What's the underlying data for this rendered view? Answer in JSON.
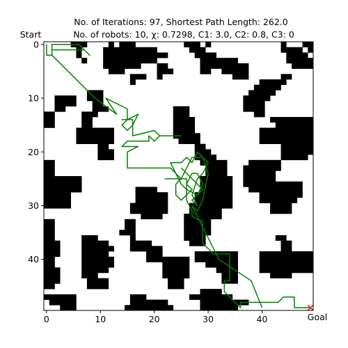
{
  "chart_data": {
    "type": "grid-path",
    "title_line1": "No. of Iterations: 97, Shortest Path Length: 262.0",
    "title_line2": "No. of robots: 10, χ: 0.7298, C1: 3.0, C2: 0.8, C3: 0",
    "start_label": "Start",
    "goal_label": "Goal",
    "grid_size": 50,
    "xlim": [
      -0.5,
      49.5
    ],
    "ylim": [
      49.5,
      -0.5
    ],
    "x_ticks": [
      0,
      10,
      20,
      30,
      40
    ],
    "y_ticks": [
      0,
      10,
      20,
      30,
      40
    ],
    "path_color": "#008000",
    "goal_marker_color": "#d62728",
    "goal": [
      49,
      49
    ],
    "obstacles": [
      [
        5,
        0,
        7,
        1
      ],
      [
        12,
        0,
        12,
        1
      ],
      [
        14,
        0,
        16,
        1
      ],
      [
        26,
        0,
        28,
        1
      ],
      [
        30,
        0,
        30,
        1
      ],
      [
        44,
        0,
        44,
        1
      ],
      [
        48,
        0,
        49,
        1
      ],
      [
        6,
        1,
        6,
        1
      ],
      [
        11,
        1,
        20,
        1
      ],
      [
        27,
        1,
        29,
        1
      ],
      [
        44,
        1,
        47,
        1
      ],
      [
        49,
        1,
        49,
        1
      ],
      [
        6,
        2,
        6,
        2
      ],
      [
        11,
        2,
        22,
        2
      ],
      [
        28,
        2,
        31,
        2
      ],
      [
        45,
        2,
        48,
        2
      ],
      [
        7,
        3,
        7,
        3
      ],
      [
        11,
        3,
        20,
        3
      ],
      [
        29,
        3,
        35,
        3
      ],
      [
        45,
        3,
        49,
        3
      ],
      [
        11,
        4,
        17,
        4
      ],
      [
        21,
        4,
        22,
        4
      ],
      [
        29,
        4,
        37,
        4
      ],
      [
        46,
        4,
        49,
        4
      ],
      [
        12,
        5,
        14,
        5
      ],
      [
        21,
        5,
        23,
        5
      ],
      [
        29,
        5,
        30,
        5
      ],
      [
        33,
        5,
        37,
        5
      ],
      [
        16,
        6,
        18,
        6
      ],
      [
        21,
        6,
        21,
        6
      ],
      [
        35,
        6,
        37,
        6
      ],
      [
        44,
        6,
        45,
        6
      ],
      [
        16,
        7,
        16,
        7
      ],
      [
        40,
        7,
        44,
        7
      ],
      [
        39,
        8,
        43,
        8
      ],
      [
        8,
        9,
        10,
        9
      ],
      [
        38,
        9,
        42,
        9
      ],
      [
        2,
        10,
        5,
        10
      ],
      [
        8,
        10,
        10,
        10
      ],
      [
        37,
        10,
        41,
        10
      ],
      [
        2,
        11,
        5,
        11
      ],
      [
        9,
        11,
        10,
        11
      ],
      [
        37,
        11,
        40,
        11
      ],
      [
        2,
        12,
        3,
        12
      ],
      [
        9,
        12,
        11,
        12
      ],
      [
        24,
        12,
        26,
        12
      ],
      [
        37,
        12,
        40,
        12
      ],
      [
        0,
        13,
        1,
        13
      ],
      [
        7,
        13,
        9,
        13
      ],
      [
        24,
        13,
        26,
        13
      ],
      [
        39,
        13,
        40,
        13
      ],
      [
        0,
        14,
        1,
        14
      ],
      [
        7,
        14,
        8,
        14
      ],
      [
        24,
        14,
        27,
        14
      ],
      [
        42,
        14,
        49,
        14
      ],
      [
        0,
        15,
        1,
        15
      ],
      [
        7,
        15,
        8,
        15
      ],
      [
        24,
        15,
        27,
        15
      ],
      [
        43,
        15,
        49,
        15
      ],
      [
        6,
        16,
        12,
        16
      ],
      [
        24,
        16,
        27,
        16
      ],
      [
        40,
        16,
        49,
        16
      ],
      [
        6,
        17,
        12,
        17
      ],
      [
        24,
        17,
        28,
        17
      ],
      [
        40,
        17,
        49,
        17
      ],
      [
        6,
        18,
        12,
        18
      ],
      [
        25,
        18,
        28,
        18
      ],
      [
        40,
        18,
        49,
        18
      ],
      [
        10,
        19,
        11,
        19
      ],
      [
        28,
        19,
        29,
        19
      ],
      [
        44,
        19,
        49,
        19
      ],
      [
        10,
        20,
        12,
        20
      ],
      [
        28,
        20,
        30,
        20
      ],
      [
        44,
        20,
        49,
        20
      ],
      [
        10,
        21,
        12,
        21
      ],
      [
        28,
        21,
        31,
        21
      ],
      [
        44,
        21,
        48,
        21
      ],
      [
        0,
        22,
        1,
        22
      ],
      [
        29,
        22,
        33,
        22
      ],
      [
        38,
        22,
        43,
        22
      ],
      [
        0,
        23,
        1,
        23
      ],
      [
        30,
        23,
        33,
        23
      ],
      [
        37,
        23,
        43,
        23
      ],
      [
        0,
        24,
        1,
        24
      ],
      [
        30,
        24,
        33,
        24
      ],
      [
        37,
        24,
        42,
        24
      ],
      [
        0,
        25,
        6,
        25
      ],
      [
        29,
        25,
        34,
        25
      ],
      [
        37,
        25,
        42,
        25
      ],
      [
        0,
        26,
        6,
        26
      ],
      [
        29,
        26,
        34,
        26
      ],
      [
        37,
        26,
        47,
        26
      ],
      [
        0,
        27,
        6,
        27
      ],
      [
        17,
        27,
        20,
        27
      ],
      [
        29,
        27,
        34,
        27
      ],
      [
        38,
        27,
        47,
        27
      ],
      [
        0,
        28,
        4,
        28
      ],
      [
        17,
        28,
        22,
        28
      ],
      [
        28,
        28,
        34,
        28
      ],
      [
        40,
        28,
        47,
        28
      ],
      [
        0,
        29,
        4,
        29
      ],
      [
        17,
        29,
        22,
        29
      ],
      [
        28,
        29,
        34,
        29
      ],
      [
        40,
        29,
        46,
        29
      ],
      [
        0,
        30,
        4,
        30
      ],
      [
        16,
        30,
        22,
        30
      ],
      [
        27,
        30,
        34,
        30
      ],
      [
        42,
        30,
        45,
        30
      ],
      [
        16,
        31,
        22,
        31
      ],
      [
        27,
        31,
        32,
        31
      ],
      [
        42,
        31,
        45,
        31
      ],
      [
        18,
        32,
        21,
        32
      ],
      [
        26,
        32,
        32,
        32
      ],
      [
        0,
        33,
        1,
        33
      ],
      [
        15,
        33,
        16,
        33
      ],
      [
        26,
        33,
        30,
        33
      ],
      [
        0,
        34,
        1,
        34
      ],
      [
        15,
        34,
        16,
        34
      ],
      [
        26,
        34,
        30,
        34
      ],
      [
        0,
        35,
        1,
        35
      ],
      [
        14,
        35,
        16,
        35
      ],
      [
        26,
        35,
        30,
        35
      ],
      [
        0,
        36,
        1,
        36
      ],
      [
        7,
        36,
        9,
        36
      ],
      [
        16,
        36,
        16,
        36
      ],
      [
        26,
        36,
        29,
        36
      ],
      [
        43,
        36,
        44,
        36
      ],
      [
        0,
        37,
        2,
        37
      ],
      [
        7,
        37,
        11,
        37
      ],
      [
        16,
        37,
        19,
        37
      ],
      [
        27,
        37,
        29,
        37
      ],
      [
        44,
        37,
        45,
        37
      ],
      [
        0,
        38,
        2,
        38
      ],
      [
        7,
        38,
        12,
        38
      ],
      [
        16,
        38,
        21,
        38
      ],
      [
        44,
        38,
        45,
        38
      ],
      [
        0,
        39,
        2,
        39
      ],
      [
        7,
        39,
        11,
        39
      ],
      [
        19,
        39,
        21,
        39
      ],
      [
        28,
        39,
        35,
        39
      ],
      [
        40,
        39,
        49,
        39
      ],
      [
        0,
        40,
        1,
        40
      ],
      [
        7,
        40,
        12,
        40
      ],
      [
        19,
        40,
        26,
        40
      ],
      [
        28,
        40,
        35,
        40
      ],
      [
        40,
        40,
        49,
        40
      ],
      [
        0,
        41,
        1,
        41
      ],
      [
        7,
        41,
        12,
        41
      ],
      [
        22,
        41,
        26,
        41
      ],
      [
        30,
        41,
        35,
        41
      ],
      [
        40,
        41,
        49,
        41
      ],
      [
        0,
        42,
        2,
        42
      ],
      [
        7,
        42,
        11,
        42
      ],
      [
        22,
        42,
        26,
        42
      ],
      [
        32,
        42,
        35,
        42
      ],
      [
        40,
        42,
        49,
        42
      ],
      [
        0,
        43,
        2,
        43
      ],
      [
        7,
        43,
        9,
        43
      ],
      [
        22,
        43,
        26,
        43
      ],
      [
        33,
        43,
        35,
        43
      ],
      [
        42,
        43,
        45,
        43
      ],
      [
        0,
        44,
        2,
        44
      ],
      [
        8,
        44,
        11,
        44
      ],
      [
        23,
        44,
        25,
        44
      ],
      [
        33,
        44,
        35,
        44
      ],
      [
        0,
        45,
        1,
        45
      ],
      [
        8,
        45,
        11,
        45
      ],
      [
        23,
        45,
        25,
        45
      ],
      [
        29,
        46,
        32,
        46
      ],
      [
        0,
        47,
        5,
        47
      ],
      [
        16,
        47,
        18,
        47
      ],
      [
        27,
        47,
        34,
        47
      ],
      [
        1,
        48,
        5,
        48
      ],
      [
        16,
        48,
        22,
        48
      ],
      [
        29,
        48,
        37,
        48
      ],
      [
        3,
        49,
        5,
        49
      ],
      [
        15,
        49,
        23,
        49
      ],
      [
        29,
        49,
        35,
        49
      ]
    ],
    "path": [
      [
        0,
        0
      ],
      [
        0,
        2
      ],
      [
        1,
        2
      ],
      [
        1,
        0
      ],
      [
        6,
        0
      ],
      [
        8,
        2
      ],
      [
        7,
        1
      ],
      [
        1,
        1
      ],
      [
        1,
        2
      ],
      [
        5,
        6
      ],
      [
        9,
        10
      ],
      [
        13,
        13
      ],
      [
        11,
        10
      ],
      [
        15,
        12
      ],
      [
        15,
        14
      ],
      [
        14,
        15
      ],
      [
        15,
        16
      ],
      [
        16,
        15
      ],
      [
        17,
        13
      ],
      [
        15,
        14
      ],
      [
        14,
        14
      ],
      [
        16,
        14
      ],
      [
        16,
        15
      ],
      [
        16,
        17
      ],
      [
        20,
        16
      ],
      [
        21,
        17
      ],
      [
        25,
        17
      ],
      [
        21,
        17
      ],
      [
        20,
        18
      ],
      [
        19,
        17
      ],
      [
        19,
        18
      ],
      [
        15,
        18
      ],
      [
        14,
        19
      ],
      [
        17,
        19
      ],
      [
        15,
        20
      ],
      [
        15,
        23
      ],
      [
        23,
        23
      ],
      [
        25,
        25
      ],
      [
        22,
        25
      ],
      [
        26,
        25
      ],
      [
        26,
        29
      ],
      [
        27,
        31
      ],
      [
        27,
        32
      ],
      [
        29,
        33
      ],
      [
        29,
        37
      ],
      [
        31,
        39
      ],
      [
        34,
        39
      ],
      [
        34,
        44
      ],
      [
        33,
        44
      ],
      [
        33,
        46
      ],
      [
        36,
        49
      ],
      [
        36,
        48
      ],
      [
        43,
        48
      ],
      [
        44,
        47
      ],
      [
        46,
        47
      ],
      [
        46,
        49
      ],
      [
        49,
        49
      ]
    ],
    "path_cluster": [
      [
        25,
        23
      ],
      [
        26,
        24
      ],
      [
        27,
        25
      ],
      [
        28,
        26
      ],
      [
        29,
        27
      ],
      [
        28,
        28
      ],
      [
        27,
        29
      ],
      [
        28,
        30
      ],
      [
        27,
        28
      ],
      [
        28,
        25
      ],
      [
        29,
        24
      ],
      [
        30,
        22
      ],
      [
        29,
        21
      ],
      [
        28,
        20
      ],
      [
        27,
        22
      ],
      [
        26,
        21
      ],
      [
        25,
        22
      ],
      [
        24,
        22
      ],
      [
        23,
        22
      ],
      [
        25,
        26
      ],
      [
        26,
        27
      ],
      [
        28,
        28
      ],
      [
        29,
        26
      ],
      [
        28,
        24
      ],
      [
        27,
        24
      ],
      [
        26,
        26
      ],
      [
        27,
        27
      ],
      [
        26,
        28
      ],
      [
        25,
        29
      ],
      [
        24,
        28
      ],
      [
        24,
        26
      ],
      [
        25,
        25
      ],
      [
        26,
        23
      ],
      [
        27,
        21
      ],
      [
        29,
        21
      ],
      [
        30,
        24
      ],
      [
        29,
        29
      ],
      [
        28,
        31
      ],
      [
        27,
        30
      ],
      [
        29,
        34
      ],
      [
        32,
        40
      ],
      [
        38,
        44
      ],
      [
        40,
        49
      ]
    ]
  }
}
